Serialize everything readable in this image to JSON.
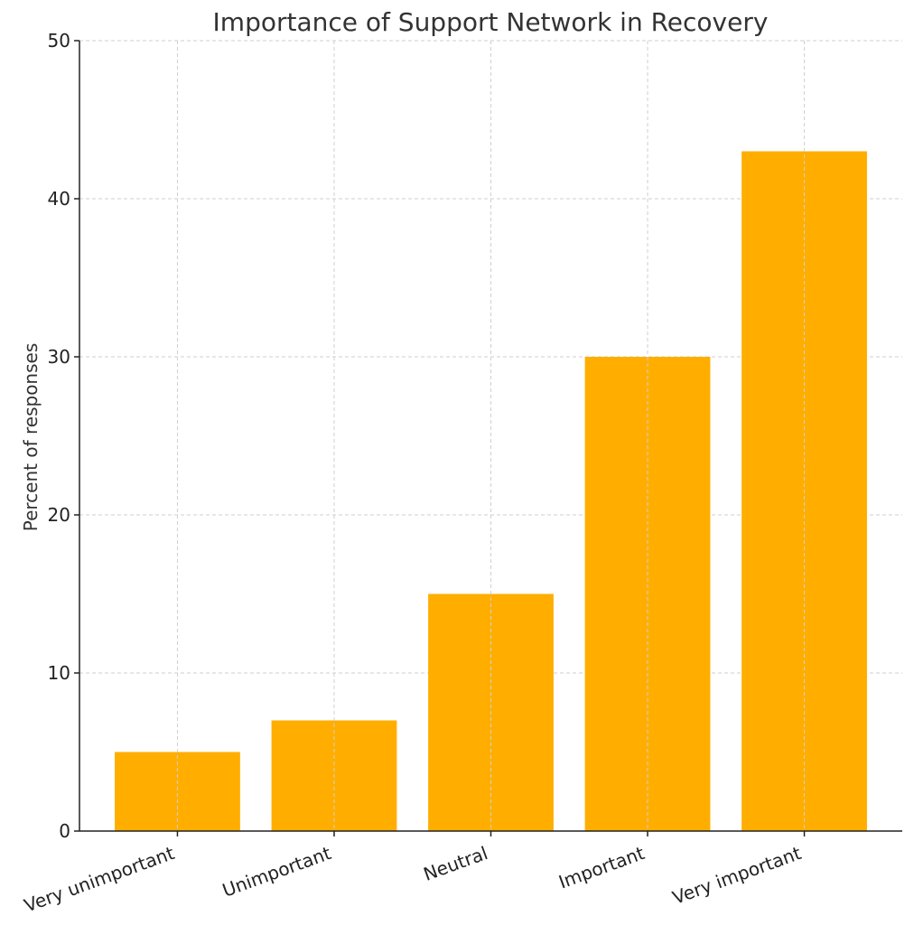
{
  "chart_data": {
    "type": "bar",
    "title": "Importance of Support Network in Recovery",
    "xlabel": "",
    "ylabel": "Percent of responses",
    "categories": [
      "Very unimportant",
      "Unimportant",
      "Neutral",
      "Important",
      "Very important"
    ],
    "values": [
      5,
      7,
      15,
      30,
      43
    ],
    "ylim": [
      0,
      50
    ],
    "yticks": [
      0,
      10,
      20,
      30,
      40,
      50
    ],
    "grid": true,
    "bar_color": "#FFAE00",
    "legend": "none"
  }
}
